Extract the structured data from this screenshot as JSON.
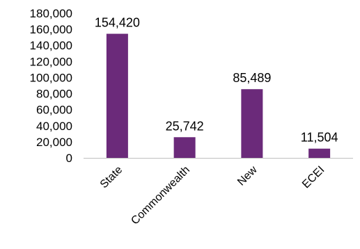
{
  "chart_data": {
    "type": "bar",
    "categories": [
      "State",
      "Commonwealth",
      "New",
      "ECEI"
    ],
    "values": [
      154420,
      25742,
      85489,
      11504
    ],
    "data_labels": [
      "154,420",
      "25,742",
      "85,489",
      "11,504"
    ],
    "y_ticks": [
      0,
      20000,
      40000,
      60000,
      80000,
      100000,
      120000,
      140000,
      160000,
      180000
    ],
    "y_tick_labels": [
      "0",
      "20,000",
      "40,000",
      "60,000",
      "80,000",
      "100,000",
      "120,000",
      "140,000",
      "160,000",
      "180,000"
    ],
    "ylim": [
      0,
      180000
    ],
    "grid": false,
    "legend": "none",
    "bar_color": "#6b2a7a",
    "axis_color": "#bfbfbf"
  }
}
